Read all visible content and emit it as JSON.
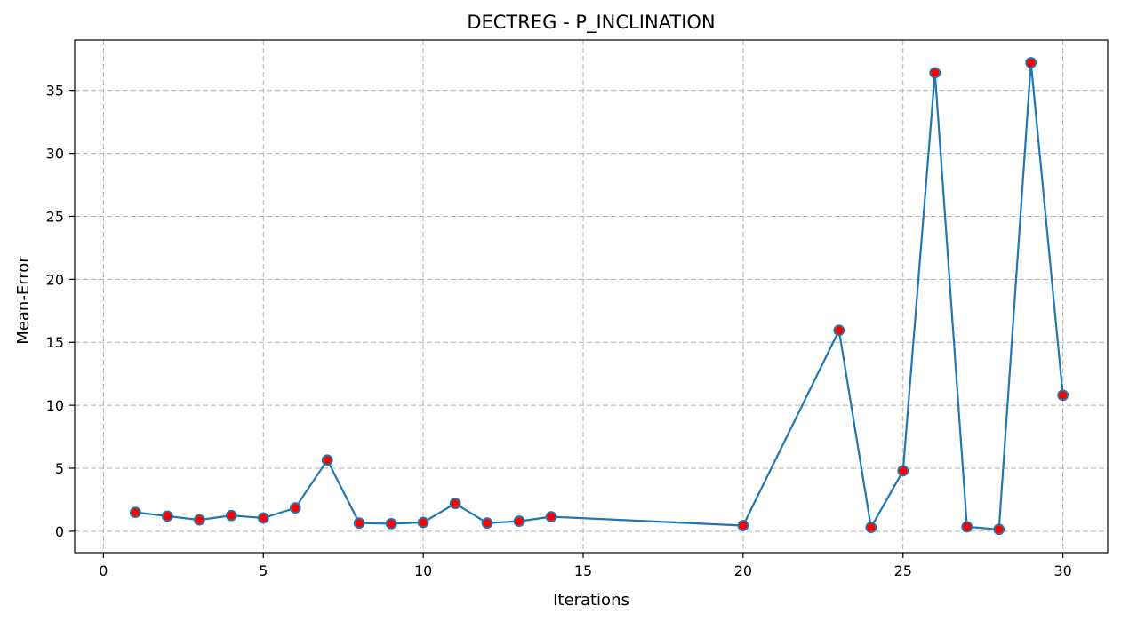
{
  "chart_data": {
    "type": "line",
    "title": "DECTREG - P_INCLINATION",
    "xlabel": "Iterations",
    "ylabel": "Mean-Error",
    "xlim": [
      -0.9,
      31.4
    ],
    "ylim": [
      -1.7,
      39.0
    ],
    "xticks": [
      0,
      5,
      10,
      15,
      20,
      25,
      30
    ],
    "yticks": [
      0,
      5,
      10,
      15,
      20,
      25,
      30,
      35
    ],
    "grid": true,
    "line_color": "#1f77b4",
    "marker_fill": "#ff0000",
    "marker_edge": "#1f77b4",
    "series": [
      {
        "x": [
          1,
          2,
          3,
          4,
          5,
          6,
          7,
          8,
          9,
          10,
          11,
          12,
          13,
          14,
          20,
          23,
          24,
          25,
          26,
          27,
          28,
          29,
          30
        ],
        "y": [
          1.5,
          1.2,
          0.9,
          1.25,
          1.05,
          1.85,
          5.65,
          0.65,
          0.6,
          0.7,
          2.2,
          0.65,
          0.8,
          1.15,
          0.45,
          15.95,
          0.3,
          4.8,
          36.4,
          0.35,
          0.15,
          37.2,
          10.8
        ]
      }
    ]
  }
}
